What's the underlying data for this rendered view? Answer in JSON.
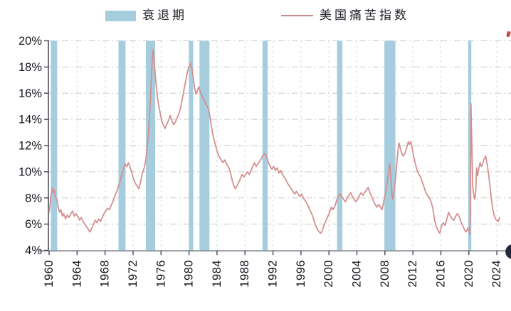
{
  "legend": {
    "recession_label": "衰退期",
    "misery_label": "美国痛苦指数"
  },
  "colors": {
    "recession_band": "#a5cdde",
    "misery_line": "#d49090",
    "legend_line": "#c98a8a",
    "gridline": "#c9c9c9",
    "vertical_gridline": "#d6d6d6",
    "left_spine": "#4b505c",
    "bottom_spine": "#8d939b",
    "tick": "#43464e",
    "tick_label": "#15151f"
  },
  "chart_data": {
    "type": "line",
    "title": "",
    "xlabel": "",
    "ylabel": "",
    "xlim": [
      1960,
      2026
    ],
    "ylim": [
      4,
      20
    ],
    "grid": "dash-dot horizontal and vertical",
    "legend_position": "top-center",
    "x_ticks": [
      1960,
      1964,
      1968,
      1972,
      1976,
      1980,
      1984,
      1988,
      1992,
      1996,
      2000,
      2004,
      2008,
      2012,
      2016,
      2020,
      2024
    ],
    "y_ticks": [
      4,
      6,
      8,
      10,
      12,
      14,
      16,
      18,
      20
    ],
    "y_tick_suffix": "%",
    "recession_bands": [
      [
        1960.25,
        1961.15
      ],
      [
        1969.92,
        1970.92
      ],
      [
        1973.83,
        1975.17
      ],
      [
        1979.98,
        1980.6
      ],
      [
        1981.5,
        1982.92
      ],
      [
        1990.5,
        1991.25
      ],
      [
        2001.15,
        2001.92
      ],
      [
        2007.92,
        2009.5
      ],
      [
        2019.9,
        2020.35
      ]
    ],
    "series": [
      {
        "name": "美国痛苦指数",
        "unit": "%",
        "points": [
          [
            1960.0,
            6.9
          ],
          [
            1960.15,
            7.6
          ],
          [
            1960.3,
            8.3
          ],
          [
            1960.45,
            8.8
          ],
          [
            1960.6,
            8.4
          ],
          [
            1960.75,
            8.6
          ],
          [
            1960.9,
            8.1
          ],
          [
            1961.1,
            7.9
          ],
          [
            1961.3,
            7.3
          ],
          [
            1961.5,
            6.9
          ],
          [
            1961.7,
            7.1
          ],
          [
            1961.9,
            6.6
          ],
          [
            1962.1,
            6.8
          ],
          [
            1962.35,
            6.4
          ],
          [
            1962.6,
            6.7
          ],
          [
            1962.85,
            6.5
          ],
          [
            1963.1,
            6.8
          ],
          [
            1963.35,
            7.0
          ],
          [
            1963.6,
            6.6
          ],
          [
            1963.85,
            6.8
          ],
          [
            1964.1,
            6.6
          ],
          [
            1964.35,
            6.3
          ],
          [
            1964.6,
            6.5
          ],
          [
            1964.85,
            6.2
          ],
          [
            1965.1,
            6.0
          ],
          [
            1965.35,
            5.8
          ],
          [
            1965.6,
            5.6
          ],
          [
            1965.85,
            5.4
          ],
          [
            1966.1,
            5.7
          ],
          [
            1966.35,
            6.0
          ],
          [
            1966.6,
            6.3
          ],
          [
            1966.85,
            6.1
          ],
          [
            1967.1,
            6.4
          ],
          [
            1967.35,
            6.2
          ],
          [
            1967.6,
            6.5
          ],
          [
            1967.85,
            6.8
          ],
          [
            1968.1,
            7.0
          ],
          [
            1968.35,
            7.2
          ],
          [
            1968.6,
            7.1
          ],
          [
            1968.85,
            7.4
          ],
          [
            1969.1,
            7.7
          ],
          [
            1969.35,
            8.1
          ],
          [
            1969.6,
            8.4
          ],
          [
            1969.85,
            8.8
          ],
          [
            1970.1,
            9.2
          ],
          [
            1970.35,
            9.7
          ],
          [
            1970.6,
            10.1
          ],
          [
            1970.85,
            10.6
          ],
          [
            1971.1,
            10.4
          ],
          [
            1971.35,
            10.7
          ],
          [
            1971.6,
            10.3
          ],
          [
            1971.85,
            9.9
          ],
          [
            1972.1,
            9.4
          ],
          [
            1972.35,
            9.1
          ],
          [
            1972.6,
            8.9
          ],
          [
            1972.85,
            8.7
          ],
          [
            1973.1,
            9.3
          ],
          [
            1973.35,
            9.9
          ],
          [
            1973.6,
            10.3
          ],
          [
            1973.85,
            11.0
          ],
          [
            1974.1,
            12.3
          ],
          [
            1974.3,
            13.8
          ],
          [
            1974.5,
            15.6
          ],
          [
            1974.65,
            17.4
          ],
          [
            1974.8,
            19.3
          ],
          [
            1974.95,
            18.8
          ],
          [
            1975.1,
            17.9
          ],
          [
            1975.3,
            16.6
          ],
          [
            1975.5,
            15.6
          ],
          [
            1975.7,
            15.0
          ],
          [
            1975.9,
            14.4
          ],
          [
            1976.1,
            13.9
          ],
          [
            1976.3,
            13.6
          ],
          [
            1976.55,
            13.3
          ],
          [
            1976.8,
            13.6
          ],
          [
            1977.05,
            13.9
          ],
          [
            1977.3,
            14.3
          ],
          [
            1977.55,
            13.9
          ],
          [
            1977.8,
            13.6
          ],
          [
            1978.05,
            13.8
          ],
          [
            1978.3,
            14.1
          ],
          [
            1978.55,
            14.4
          ],
          [
            1978.8,
            14.9
          ],
          [
            1979.05,
            15.6
          ],
          [
            1979.3,
            16.3
          ],
          [
            1979.55,
            17.0
          ],
          [
            1979.8,
            17.7
          ],
          [
            1980.0,
            18.0
          ],
          [
            1980.2,
            18.3
          ],
          [
            1980.4,
            17.9
          ],
          [
            1980.6,
            17.2
          ],
          [
            1980.8,
            16.4
          ],
          [
            1981.0,
            15.9
          ],
          [
            1981.2,
            16.2
          ],
          [
            1981.4,
            16.5
          ],
          [
            1981.6,
            16.1
          ],
          [
            1981.85,
            15.8
          ],
          [
            1982.1,
            15.5
          ],
          [
            1982.35,
            15.2
          ],
          [
            1982.6,
            15.0
          ],
          [
            1982.85,
            14.7
          ],
          [
            1983.1,
            13.8
          ],
          [
            1983.35,
            13.0
          ],
          [
            1983.6,
            12.4
          ],
          [
            1983.85,
            11.9
          ],
          [
            1984.1,
            11.4
          ],
          [
            1984.35,
            11.1
          ],
          [
            1984.6,
            10.9
          ],
          [
            1984.85,
            10.7
          ],
          [
            1985.1,
            10.9
          ],
          [
            1985.35,
            10.6
          ],
          [
            1985.6,
            10.4
          ],
          [
            1985.85,
            10.1
          ],
          [
            1986.1,
            9.5
          ],
          [
            1986.35,
            9.0
          ],
          [
            1986.6,
            8.7
          ],
          [
            1986.85,
            8.9
          ],
          [
            1987.1,
            9.2
          ],
          [
            1987.35,
            9.5
          ],
          [
            1987.6,
            9.8
          ],
          [
            1987.85,
            9.6
          ],
          [
            1988.1,
            9.8
          ],
          [
            1988.35,
            10.0
          ],
          [
            1988.6,
            9.8
          ],
          [
            1988.85,
            10.1
          ],
          [
            1989.1,
            10.4
          ],
          [
            1989.35,
            10.7
          ],
          [
            1989.6,
            10.4
          ],
          [
            1989.85,
            10.6
          ],
          [
            1990.1,
            10.8
          ],
          [
            1990.35,
            11.0
          ],
          [
            1990.6,
            11.3
          ],
          [
            1990.85,
            11.4
          ],
          [
            1991.1,
            11.1
          ],
          [
            1991.35,
            10.7
          ],
          [
            1991.6,
            10.4
          ],
          [
            1991.85,
            10.2
          ],
          [
            1992.1,
            10.4
          ],
          [
            1992.35,
            10.1
          ],
          [
            1992.6,
            10.3
          ],
          [
            1992.85,
            9.9
          ],
          [
            1993.1,
            10.1
          ],
          [
            1993.35,
            9.8
          ],
          [
            1993.6,
            9.6
          ],
          [
            1993.85,
            9.4
          ],
          [
            1994.1,
            9.1
          ],
          [
            1994.35,
            8.9
          ],
          [
            1994.6,
            8.7
          ],
          [
            1994.85,
            8.5
          ],
          [
            1995.1,
            8.3
          ],
          [
            1995.35,
            8.5
          ],
          [
            1995.6,
            8.3
          ],
          [
            1995.85,
            8.1
          ],
          [
            1996.1,
            8.3
          ],
          [
            1996.35,
            8.0
          ],
          [
            1996.6,
            7.8
          ],
          [
            1996.85,
            7.6
          ],
          [
            1997.1,
            7.3
          ],
          [
            1997.35,
            7.0
          ],
          [
            1997.6,
            6.7
          ],
          [
            1997.85,
            6.3
          ],
          [
            1998.1,
            5.9
          ],
          [
            1998.35,
            5.6
          ],
          [
            1998.6,
            5.4
          ],
          [
            1998.85,
            5.3
          ],
          [
            1999.1,
            5.6
          ],
          [
            1999.35,
            6.0
          ],
          [
            1999.6,
            6.3
          ],
          [
            1999.85,
            6.6
          ],
          [
            2000.1,
            6.9
          ],
          [
            2000.35,
            7.3
          ],
          [
            2000.6,
            7.1
          ],
          [
            2000.85,
            7.4
          ],
          [
            2001.1,
            7.8
          ],
          [
            2001.35,
            8.1
          ],
          [
            2001.6,
            8.3
          ],
          [
            2001.85,
            8.1
          ],
          [
            2002.1,
            7.9
          ],
          [
            2002.35,
            7.7
          ],
          [
            2002.6,
            8.0
          ],
          [
            2002.85,
            8.2
          ],
          [
            2003.1,
            8.4
          ],
          [
            2003.35,
            8.1
          ],
          [
            2003.6,
            7.9
          ],
          [
            2003.85,
            7.7
          ],
          [
            2004.1,
            7.9
          ],
          [
            2004.35,
            8.2
          ],
          [
            2004.6,
            8.4
          ],
          [
            2004.85,
            8.2
          ],
          [
            2005.1,
            8.4
          ],
          [
            2005.35,
            8.6
          ],
          [
            2005.6,
            8.8
          ],
          [
            2005.85,
            8.4
          ],
          [
            2006.1,
            8.1
          ],
          [
            2006.35,
            7.8
          ],
          [
            2006.6,
            7.5
          ],
          [
            2006.85,
            7.3
          ],
          [
            2007.1,
            7.5
          ],
          [
            2007.35,
            7.3
          ],
          [
            2007.6,
            7.1
          ],
          [
            2007.85,
            7.8
          ],
          [
            2008.1,
            8.4
          ],
          [
            2008.35,
            9.3
          ],
          [
            2008.55,
            10.0
          ],
          [
            2008.7,
            10.6
          ],
          [
            2008.85,
            9.6
          ],
          [
            2009.0,
            8.3
          ],
          [
            2009.1,
            7.9
          ],
          [
            2009.3,
            8.5
          ],
          [
            2009.5,
            9.4
          ],
          [
            2009.7,
            10.7
          ],
          [
            2009.85,
            11.5
          ],
          [
            2010.0,
            12.2
          ],
          [
            2010.15,
            11.9
          ],
          [
            2010.35,
            11.5
          ],
          [
            2010.6,
            11.2
          ],
          [
            2010.85,
            11.4
          ],
          [
            2011.1,
            11.8
          ],
          [
            2011.35,
            12.3
          ],
          [
            2011.5,
            12.1
          ],
          [
            2011.7,
            12.3
          ],
          [
            2011.9,
            11.8
          ],
          [
            2012.1,
            11.2
          ],
          [
            2012.35,
            10.6
          ],
          [
            2012.6,
            10.1
          ],
          [
            2012.85,
            9.8
          ],
          [
            2013.1,
            9.6
          ],
          [
            2013.35,
            9.2
          ],
          [
            2013.6,
            8.8
          ],
          [
            2013.85,
            8.4
          ],
          [
            2014.1,
            8.2
          ],
          [
            2014.35,
            8.0
          ],
          [
            2014.6,
            7.7
          ],
          [
            2014.85,
            7.2
          ],
          [
            2015.1,
            6.3
          ],
          [
            2015.35,
            5.8
          ],
          [
            2015.6,
            5.5
          ],
          [
            2015.85,
            5.3
          ],
          [
            2016.1,
            5.9
          ],
          [
            2016.35,
            6.1
          ],
          [
            2016.6,
            5.9
          ],
          [
            2016.85,
            6.4
          ],
          [
            2017.1,
            6.9
          ],
          [
            2017.35,
            6.6
          ],
          [
            2017.6,
            6.4
          ],
          [
            2017.85,
            6.3
          ],
          [
            2018.1,
            6.6
          ],
          [
            2018.35,
            6.8
          ],
          [
            2018.6,
            6.6
          ],
          [
            2018.85,
            6.2
          ],
          [
            2019.1,
            5.9
          ],
          [
            2019.35,
            5.6
          ],
          [
            2019.6,
            5.4
          ],
          [
            2019.85,
            5.7
          ],
          [
            2020.0,
            5.5
          ],
          [
            2020.1,
            5.2
          ],
          [
            2020.2,
            6.5
          ],
          [
            2020.3,
            15.2
          ],
          [
            2020.45,
            11.5
          ],
          [
            2020.55,
            8.9
          ],
          [
            2020.7,
            8.2
          ],
          [
            2020.85,
            7.9
          ],
          [
            2021.0,
            8.6
          ],
          [
            2021.1,
            10.3
          ],
          [
            2021.25,
            9.7
          ],
          [
            2021.4,
            10.2
          ],
          [
            2021.6,
            10.7
          ],
          [
            2021.8,
            10.4
          ],
          [
            2022.0,
            10.7
          ],
          [
            2022.2,
            11.0
          ],
          [
            2022.4,
            11.2
          ],
          [
            2022.6,
            10.6
          ],
          [
            2022.8,
            9.9
          ],
          [
            2023.0,
            9.0
          ],
          [
            2023.2,
            8.0
          ],
          [
            2023.4,
            7.2
          ],
          [
            2023.6,
            6.7
          ],
          [
            2023.8,
            6.4
          ],
          [
            2024.0,
            6.3
          ],
          [
            2024.2,
            6.2
          ],
          [
            2024.4,
            6.5
          ]
        ]
      }
    ]
  }
}
